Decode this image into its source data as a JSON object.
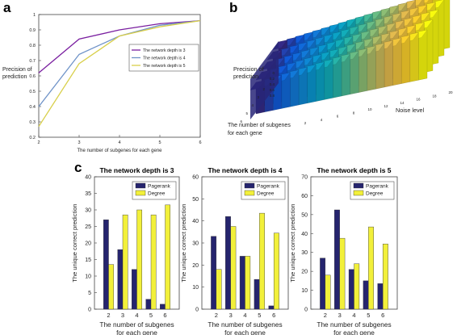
{
  "panels": {
    "a": "a",
    "b": "b",
    "c": "c"
  },
  "chart_data": [
    {
      "type": "line",
      "panel": "a",
      "title": "",
      "xlabel": "The number of subgenes for each gene",
      "ylabel": "Precision of prediction",
      "x": [
        2,
        3,
        4,
        5,
        6
      ],
      "xlim": [
        2,
        6
      ],
      "ylim": [
        0.2,
        1
      ],
      "xticks": [
        "2",
        "3",
        "4",
        "5",
        "6"
      ],
      "yticks": [
        "0.2",
        "0.3",
        "0.4",
        "0.5",
        "0.6",
        "0.7",
        "0.8",
        "0.9",
        "1"
      ],
      "legend_position": "right",
      "series": [
        {
          "name": "The network depth is 3",
          "color": "#7a1fa0",
          "values": [
            0.62,
            0.84,
            0.9,
            0.94,
            0.96
          ]
        },
        {
          "name": "The network depth is 4",
          "color": "#6f93c8",
          "values": [
            0.4,
            0.74,
            0.86,
            0.93,
            0.96
          ]
        },
        {
          "name": "The network depth is 5",
          "color": "#d8cf4a",
          "values": [
            0.27,
            0.68,
            0.86,
            0.92,
            0.96
          ]
        }
      ]
    },
    {
      "type": "heatmap",
      "panel": "b",
      "style": "3d-bar",
      "zlabel": "Precision of prediction",
      "xlabel": "Noise level",
      "ylabel": "The number of subgenes for each gene",
      "x_ticks": [
        "2",
        "4",
        "6",
        "8",
        "10",
        "12",
        "14",
        "16",
        "18",
        "20"
      ],
      "y_ticks": [
        "2",
        "3",
        "4",
        "5",
        "6"
      ],
      "z_ticks": [
        "0",
        "0.2",
        "0.4",
        "0.6",
        "0.8"
      ],
      "colormap": "parula"
    },
    {
      "type": "bar",
      "panel": "c",
      "title": "The network depth is 3",
      "xlabel": "The number of subgenes\nfor each gene",
      "ylabel": "",
      "categories": [
        "2",
        "3",
        "4",
        "5",
        "6"
      ],
      "ylim": [
        0,
        40
      ],
      "yticks": [
        "0",
        "5",
        "10",
        "15",
        "20",
        "25",
        "30",
        "35",
        "40"
      ],
      "series": [
        {
          "name": "Pagerank",
          "color": "#25246e",
          "values": [
            27,
            18,
            12,
            3,
            1.5
          ]
        },
        {
          "name": "Degree",
          "color": "#f2f03a",
          "values": [
            13.5,
            28.5,
            30,
            28.5,
            31.5
          ]
        }
      ]
    },
    {
      "type": "bar",
      "panel": "c",
      "title": "The network depth is 4",
      "xlabel": "The number of subgenes\nfor each gene",
      "ylabel": "The unique correct prediction",
      "categories": [
        "2",
        "3",
        "4",
        "5",
        "6"
      ],
      "ylim": [
        0,
        60
      ],
      "yticks": [
        "0",
        "10",
        "20",
        "30",
        "40",
        "50",
        "60"
      ],
      "series": [
        {
          "name": "Pagerank",
          "color": "#25246e",
          "values": [
            33,
            42,
            24,
            13.5,
            1.5
          ]
        },
        {
          "name": "Degree",
          "color": "#f2f03a",
          "values": [
            18,
            37.5,
            24,
            43.5,
            34.5
          ]
        }
      ]
    },
    {
      "type": "bar",
      "panel": "c",
      "title": "The network depth is 5",
      "xlabel": "The number of subgenes\nfor each gene",
      "ylabel": "The unique correct prediction",
      "categories": [
        "2",
        "3",
        "4",
        "5",
        "6"
      ],
      "ylim": [
        0,
        70
      ],
      "yticks": [
        "0",
        "10",
        "20",
        "30",
        "40",
        "50",
        "60",
        "70"
      ],
      "series": [
        {
          "name": "Pagerank",
          "color": "#25246e",
          "values": [
            27,
            52.5,
            21,
            15,
            13.5
          ]
        },
        {
          "name": "Degree",
          "color": "#f2f03a",
          "values": [
            18,
            37.5,
            24,
            43.5,
            34.5
          ]
        }
      ]
    }
  ]
}
